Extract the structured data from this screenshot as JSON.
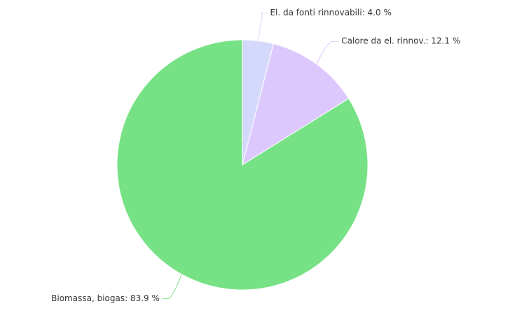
{
  "chart_data": {
    "type": "pie",
    "values": [
      4.0,
      12.1,
      83.9
    ],
    "value_labels": [
      "El. da fonti rinnovabili: 4.0 %",
      "Calore da el. rinnov.: 12.1 %",
      "Biomassa, biogas: 83.9 %"
    ],
    "colors": [
      "#d4d9fb",
      "#dcc8fd",
      "#77e285"
    ]
  }
}
